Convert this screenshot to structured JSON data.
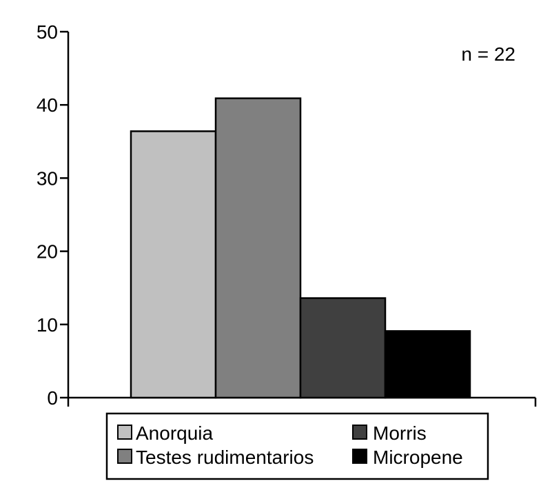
{
  "chart_data": {
    "type": "bar",
    "categories": [
      "Anorquia",
      "Testes rudimentarios",
      "Morris",
      "Micropene"
    ],
    "values": [
      36.4,
      40.9,
      13.6,
      9.1
    ],
    "colors": [
      "#c0c0c0",
      "#808080",
      "#404040",
      "#000000"
    ],
    "ylim": [
      0,
      50
    ],
    "yticks": [
      "0",
      "10",
      "20",
      "30",
      "40",
      "50"
    ],
    "annotation": "n = 22",
    "legend_position": "bottom",
    "grid": false
  }
}
